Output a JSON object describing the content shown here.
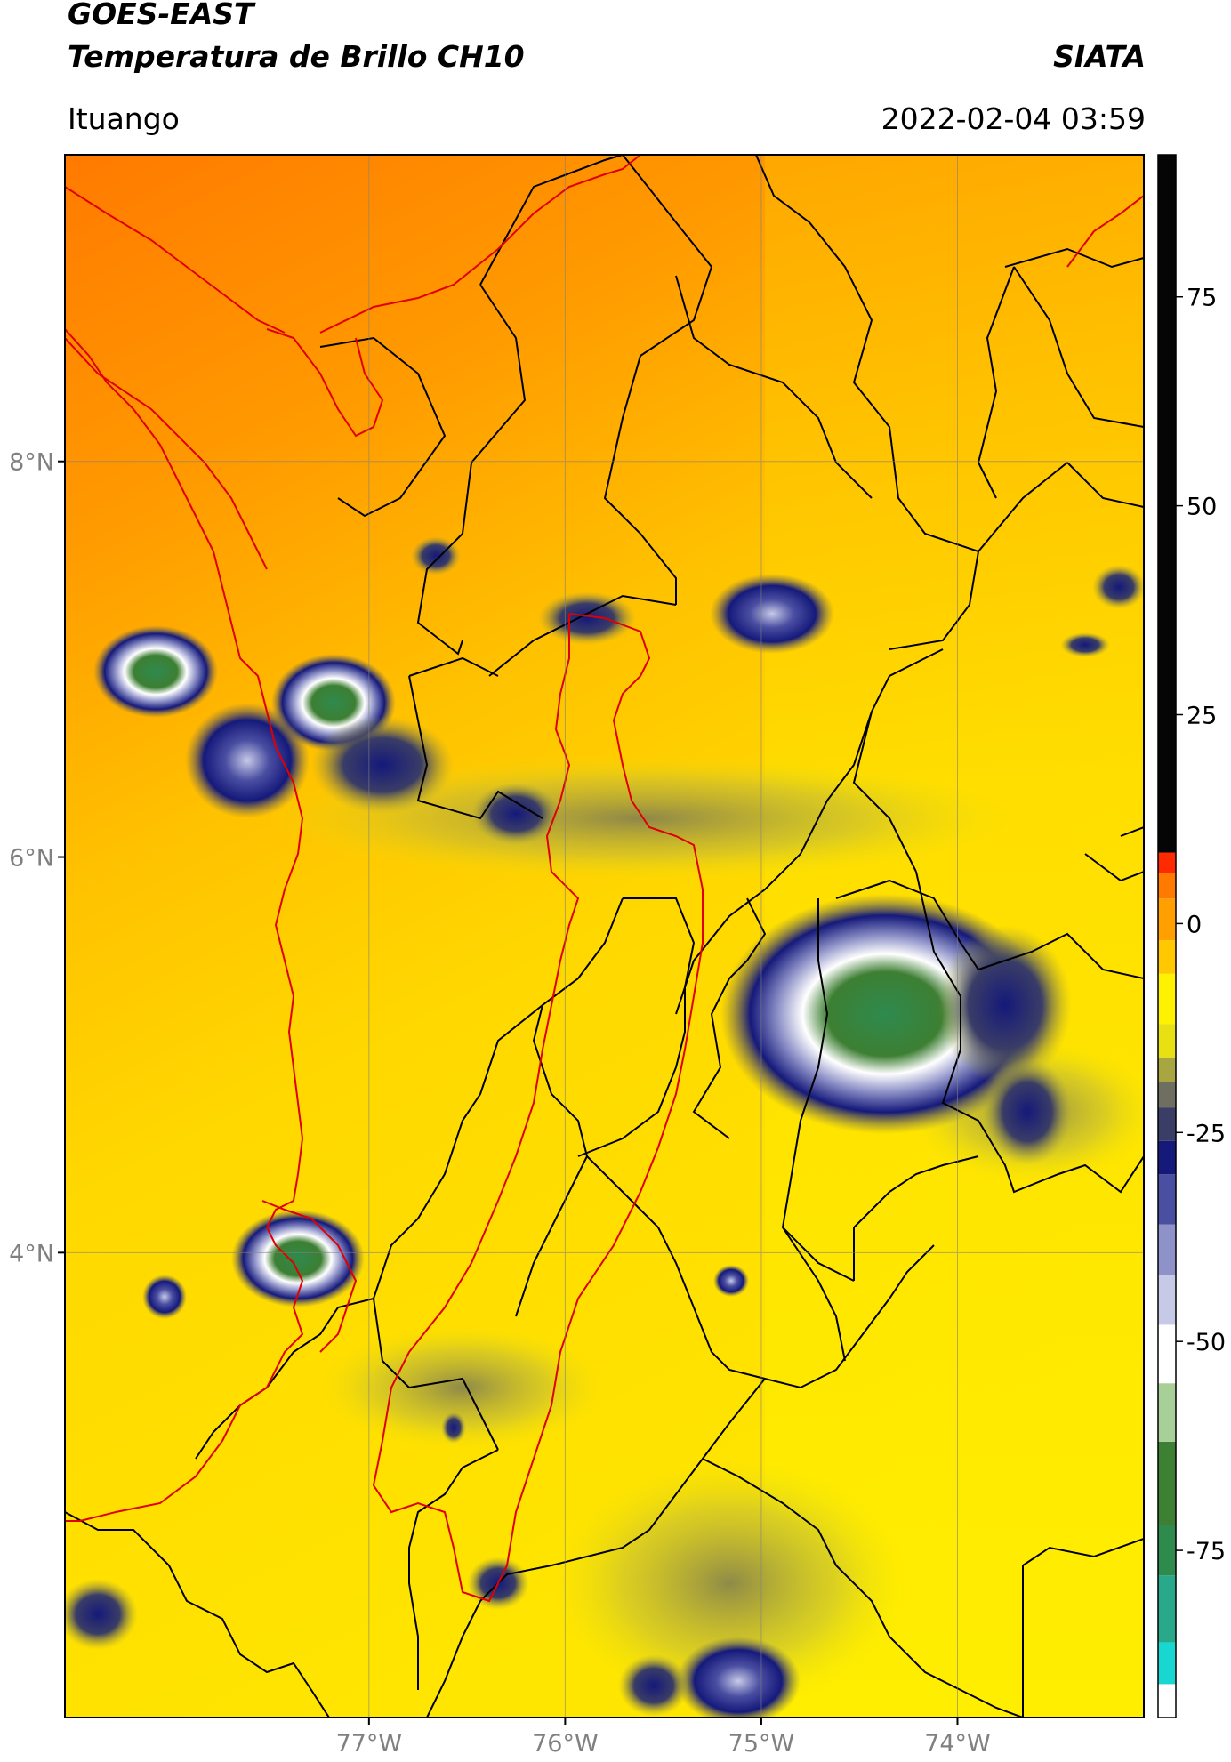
{
  "header": {
    "satellite": "GOES-EAST",
    "product": "Temperatura de Brillo CH10",
    "organization": "SIATA",
    "location": "Ituango",
    "datetime": "2022-02-04 03:59"
  },
  "map": {
    "lon_range": [
      -78.55,
      -73.05
    ],
    "lat_range": [
      1.65,
      9.55
    ],
    "lon_ticks": [
      {
        "value": -77,
        "label": "77°W"
      },
      {
        "value": -76,
        "label": "76°W"
      },
      {
        "value": -75,
        "label": "75°W"
      },
      {
        "value": -74,
        "label": "74°W"
      }
    ],
    "lat_ticks": [
      {
        "value": 8,
        "label": "8°N"
      },
      {
        "value": 6,
        "label": "6°N"
      },
      {
        "value": 4,
        "label": "4°N"
      }
    ],
    "gridlines": true,
    "border_color": "#000000",
    "highlight_boundary_color": "#e00000"
  },
  "colorbar": {
    "range": [
      -95,
      92
    ],
    "ticks": [
      {
        "value": 75,
        "label": "75"
      },
      {
        "value": 50,
        "label": "50"
      },
      {
        "value": 25,
        "label": "25"
      },
      {
        "value": 0,
        "label": "0"
      },
      {
        "value": -25,
        "label": "-25"
      },
      {
        "value": -50,
        "label": "-50"
      },
      {
        "value": -75,
        "label": "-75"
      }
    ],
    "segments": [
      {
        "from": -95,
        "to": -91,
        "color": "#ffffff"
      },
      {
        "from": -91,
        "to": -86,
        "color": "#18d6d0"
      },
      {
        "from": -86,
        "to": -78,
        "color": "#2aa88a"
      },
      {
        "from": -78,
        "to": -72,
        "color": "#2f8a4e"
      },
      {
        "from": -72,
        "to": -62,
        "color": "#3d7f33"
      },
      {
        "from": -62,
        "to": -55,
        "color": "#a9cf98"
      },
      {
        "from": -55,
        "to": -48,
        "color": "#ffffff"
      },
      {
        "from": -48,
        "to": -42,
        "color": "#c7cae6"
      },
      {
        "from": -42,
        "to": -36,
        "color": "#8e92c8"
      },
      {
        "from": -36,
        "to": -30,
        "color": "#4b4fa2"
      },
      {
        "from": -30,
        "to": -26,
        "color": "#15197a"
      },
      {
        "from": -26,
        "to": -22,
        "color": "#3a3d66"
      },
      {
        "from": -22,
        "to": -19,
        "color": "#6e6f60"
      },
      {
        "from": -19,
        "to": -16,
        "color": "#a8a640"
      },
      {
        "from": -16,
        "to": -12,
        "color": "#e8e010"
      },
      {
        "from": -12,
        "to": -6,
        "color": "#fff200"
      },
      {
        "from": -6,
        "to": -2,
        "color": "#ffc800"
      },
      {
        "from": -2,
        "to": 3,
        "color": "#ff9f00"
      },
      {
        "from": 3,
        "to": 6,
        "color": "#ff7a00"
      },
      {
        "from": 6,
        "to": 8.5,
        "color": "#ff2a00"
      },
      {
        "from": 8.5,
        "to": 92,
        "color": "#050505"
      }
    ]
  }
}
